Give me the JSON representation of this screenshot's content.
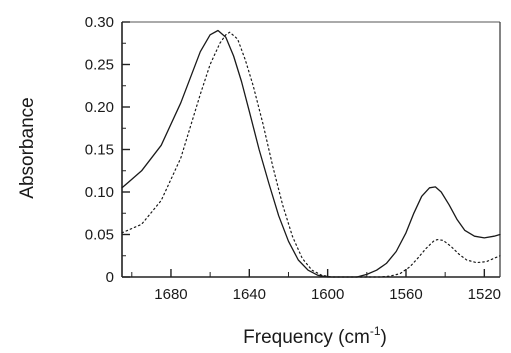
{
  "chart_data": {
    "type": "line",
    "title": "",
    "xlabel": {
      "main": "Frequency (cm",
      "sup": "-1",
      "close": ")"
    },
    "ylabel": "Absorbance",
    "x_reversed": true,
    "xlim": [
      1705,
      1512
    ],
    "ylim": [
      0,
      0.3
    ],
    "x_ticks": [
      1680,
      1640,
      1600,
      1560,
      1520
    ],
    "x_tick_labels": [
      "1680",
      "1640",
      "1600",
      "1560",
      "1520"
    ],
    "y_ticks": [
      0,
      0.05,
      0.1,
      0.15,
      0.2,
      0.25,
      0.3
    ],
    "y_tick_labels": [
      "0",
      "0.05",
      "0.10",
      "0.15",
      "0.20",
      "0.25",
      "0.30"
    ],
    "legend": "none",
    "grid": false,
    "series": [
      {
        "style": "solid",
        "x": [
          1705,
          1695,
          1685,
          1675,
          1665,
          1660,
          1656,
          1652,
          1648,
          1644,
          1640,
          1635,
          1630,
          1625,
          1620,
          1615,
          1610,
          1605,
          1600,
          1595,
          1590,
          1585,
          1580,
          1575,
          1570,
          1565,
          1560,
          1556,
          1552,
          1548,
          1545,
          1542,
          1538,
          1534,
          1530,
          1525,
          1520,
          1515,
          1512
        ],
        "y": [
          0.105,
          0.125,
          0.155,
          0.205,
          0.265,
          0.285,
          0.29,
          0.282,
          0.26,
          0.23,
          0.195,
          0.15,
          0.11,
          0.072,
          0.042,
          0.02,
          0.008,
          0.002,
          0.0,
          0.0,
          0.0,
          0.0,
          0.003,
          0.008,
          0.016,
          0.03,
          0.052,
          0.075,
          0.095,
          0.105,
          0.106,
          0.1,
          0.085,
          0.068,
          0.055,
          0.048,
          0.046,
          0.048,
          0.05
        ]
      },
      {
        "style": "dotted",
        "x": [
          1705,
          1695,
          1685,
          1675,
          1665,
          1660,
          1655,
          1652,
          1650,
          1646,
          1642,
          1638,
          1633,
          1628,
          1623,
          1618,
          1613,
          1608,
          1603,
          1598,
          1593,
          1588,
          1583,
          1578,
          1573,
          1568,
          1563,
          1558,
          1554,
          1550,
          1546,
          1544,
          1541,
          1537,
          1533,
          1529,
          1524,
          1519,
          1515,
          1512
        ],
        "y": [
          0.052,
          0.062,
          0.09,
          0.14,
          0.215,
          0.25,
          0.275,
          0.285,
          0.288,
          0.28,
          0.255,
          0.225,
          0.18,
          0.13,
          0.085,
          0.048,
          0.022,
          0.008,
          0.002,
          0.0,
          0.0,
          0.0,
          0.0,
          0.0,
          0.0,
          0.001,
          0.004,
          0.012,
          0.022,
          0.033,
          0.042,
          0.044,
          0.043,
          0.036,
          0.027,
          0.02,
          0.017,
          0.018,
          0.022,
          0.025
        ]
      }
    ]
  }
}
